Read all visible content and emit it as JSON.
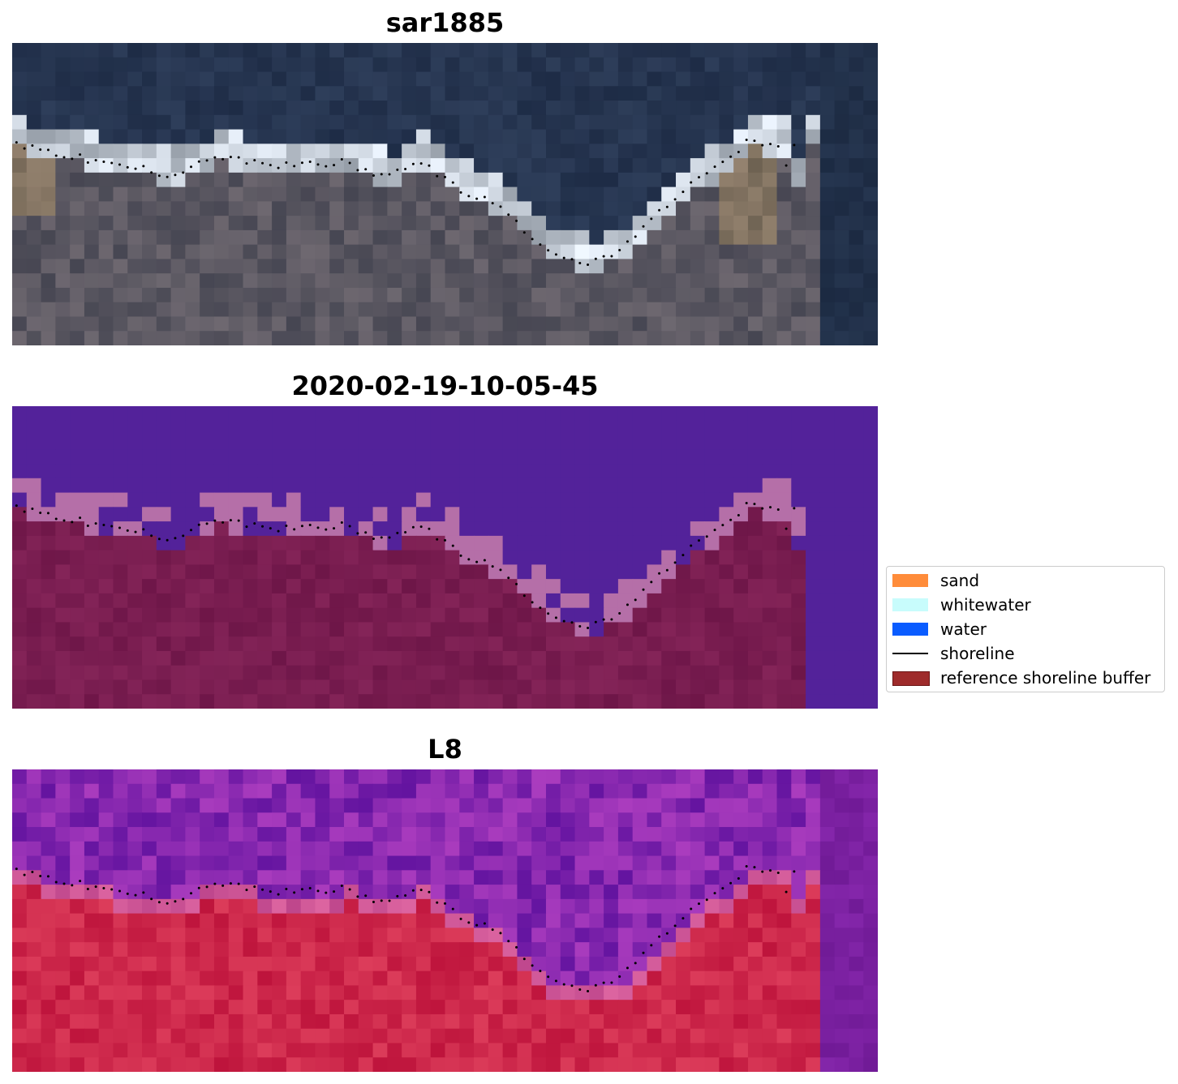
{
  "figure": {
    "panels": [
      {
        "title": "sar1885",
        "kind": "rgb"
      },
      {
        "title": "2020-02-19-10-05-45",
        "kind": "classified"
      },
      {
        "title": "L8",
        "kind": "mndwi"
      }
    ],
    "legend": {
      "items": [
        {
          "label": "sand",
          "color": "#ff8c3a",
          "type": "patch"
        },
        {
          "label": "whitewater",
          "color": "#c8fcfc",
          "type": "patch"
        },
        {
          "label": "water",
          "color": "#0a5cff",
          "type": "patch"
        },
        {
          "label": "shoreline",
          "color": "#000000",
          "type": "line"
        },
        {
          "label": "reference shoreline buffer",
          "color": "#9e2b2b",
          "type": "patch"
        }
      ]
    }
  }
}
